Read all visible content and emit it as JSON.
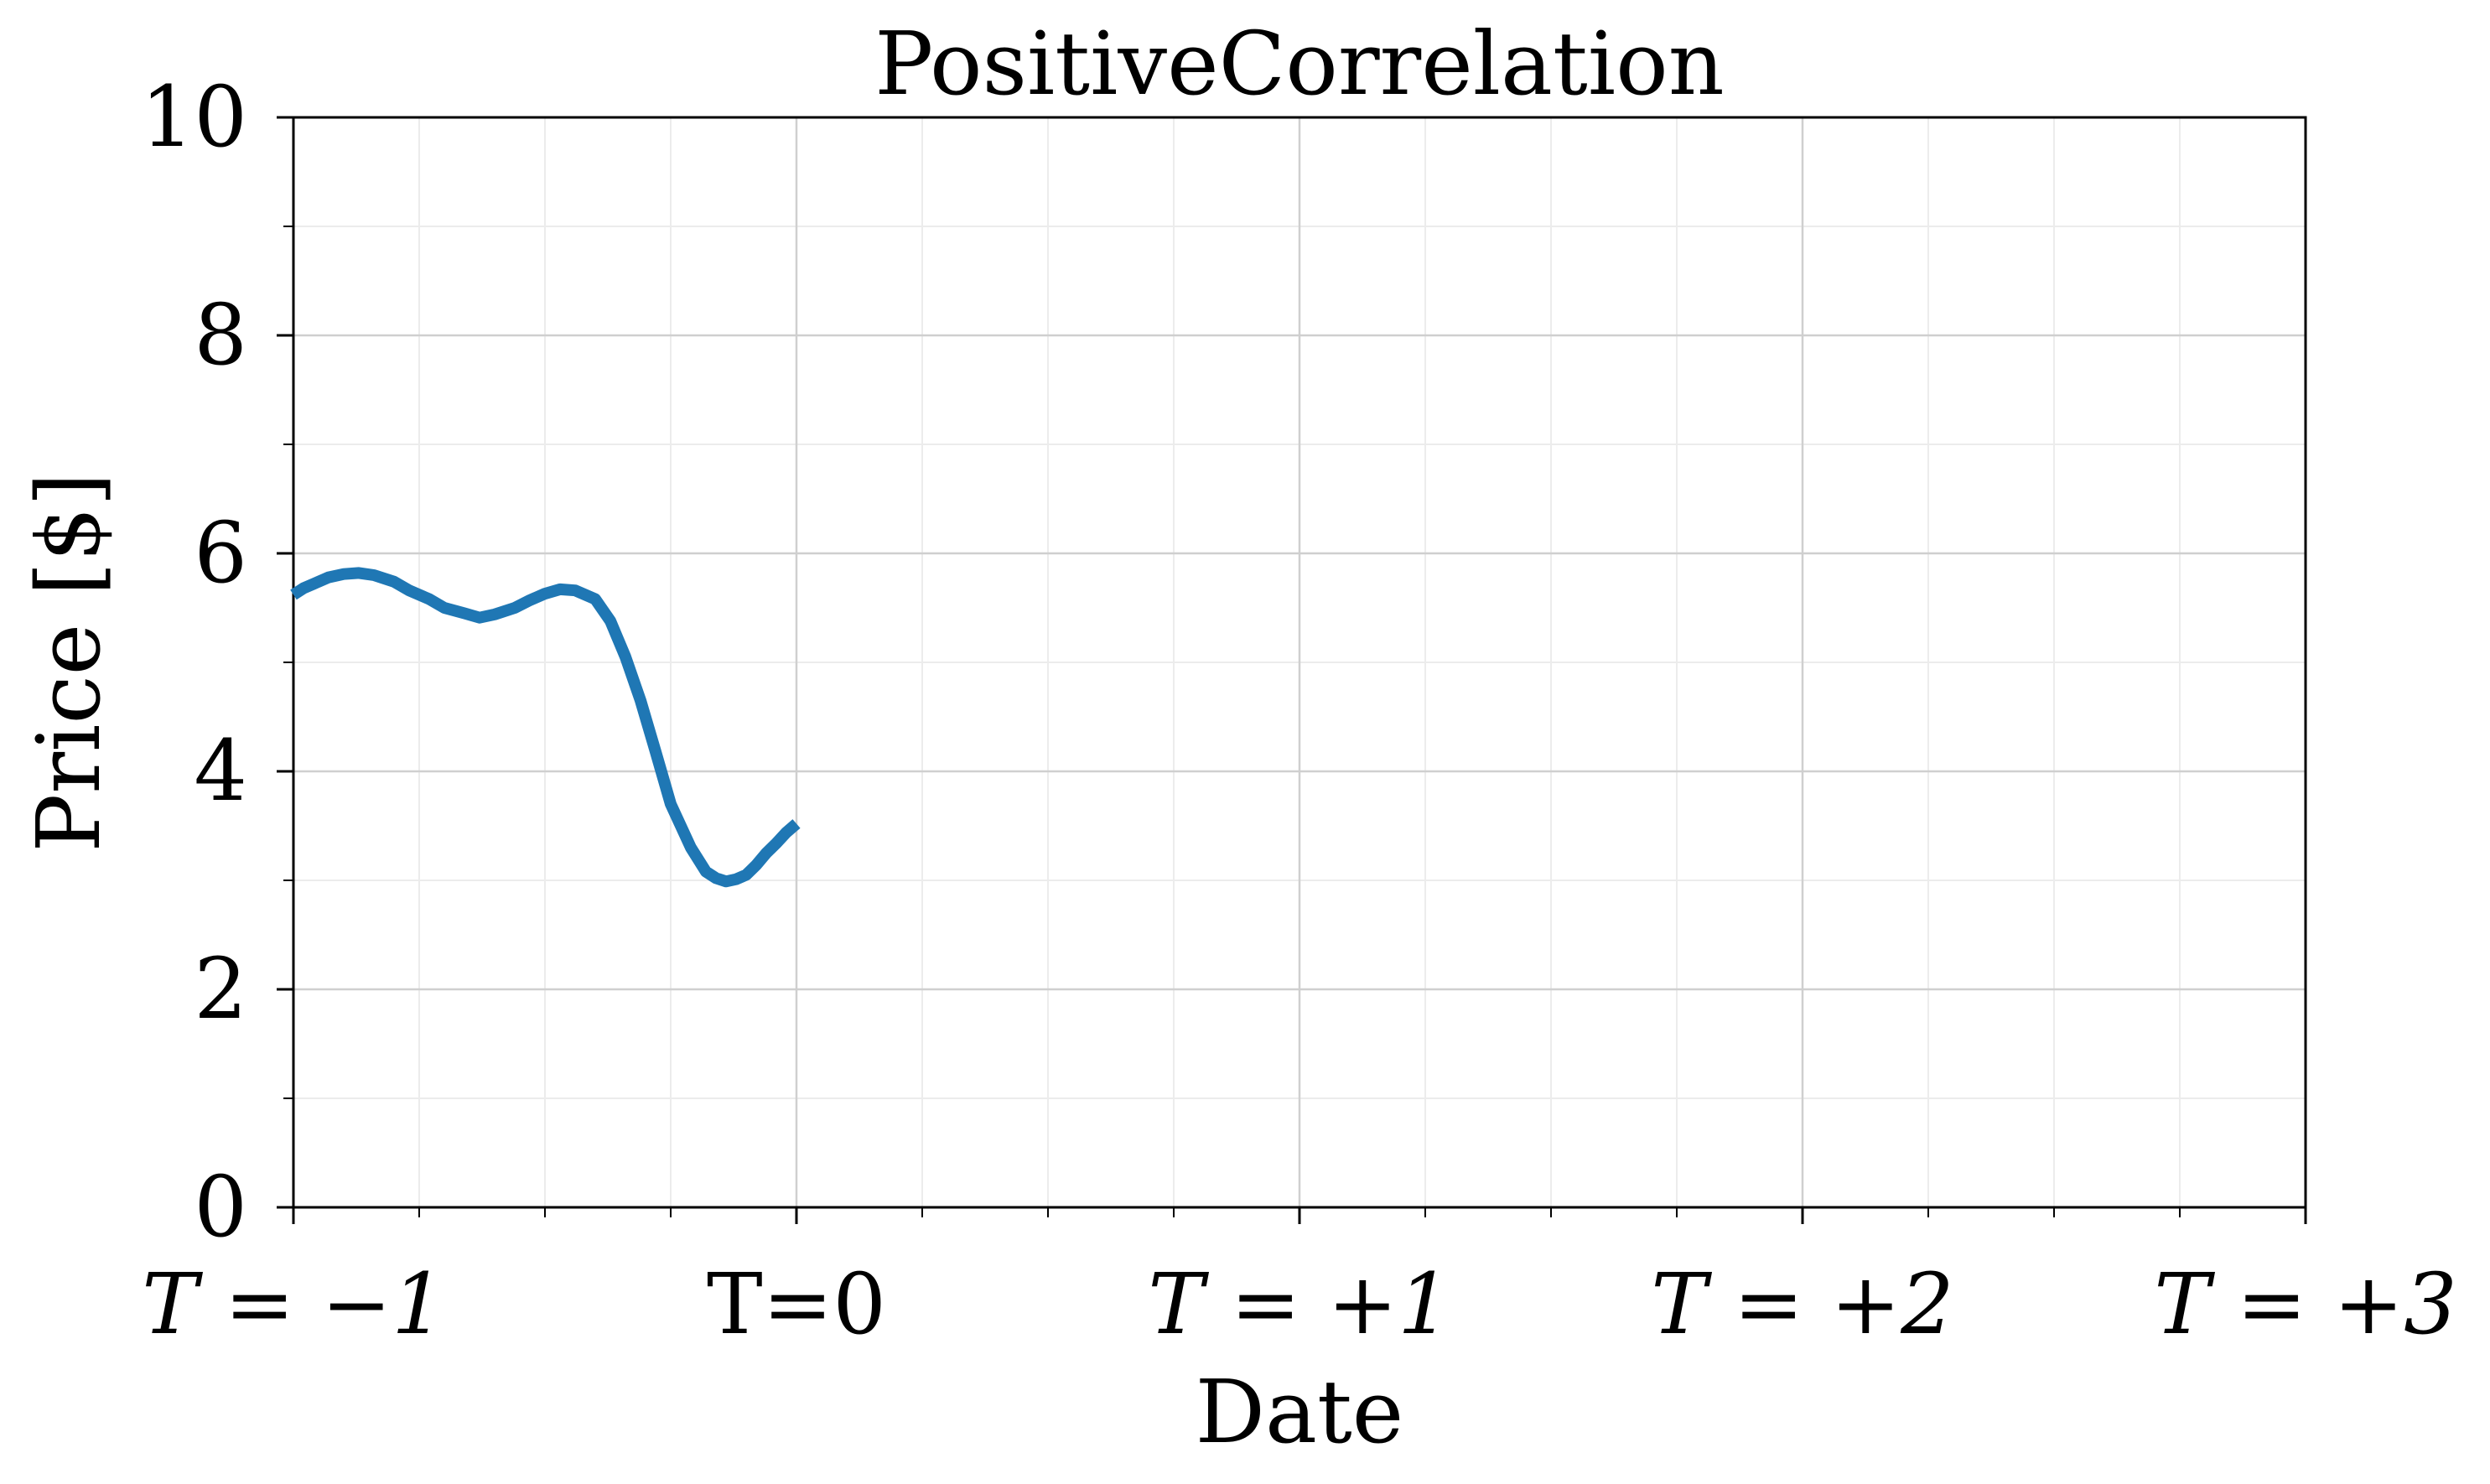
{
  "chart_data": {
    "type": "line",
    "title": "PositiveCorrelation",
    "xlabel": "Date",
    "ylabel": "Price [$]",
    "xlim": [
      -1,
      3
    ],
    "ylim": [
      0,
      10
    ],
    "x_ticks": [
      {
        "value": -1,
        "label": "T = −1"
      },
      {
        "value": 0,
        "label": "T=0"
      },
      {
        "value": 1,
        "label": "T = +1"
      },
      {
        "value": 2,
        "label": "T = +2"
      },
      {
        "value": 3,
        "label": "T = +3"
      }
    ],
    "y_ticks": [
      {
        "value": 0,
        "label": "0"
      },
      {
        "value": 2,
        "label": "2"
      },
      {
        "value": 4,
        "label": "4"
      },
      {
        "value": 6,
        "label": "6"
      },
      {
        "value": 8,
        "label": "8"
      },
      {
        "value": 10,
        "label": "10"
      }
    ],
    "grid": true,
    "minor_grid": true,
    "legend": "none",
    "series": [
      {
        "color": "#1f77b4",
        "x": [
          -1.0,
          -0.98,
          -0.96,
          -0.93,
          -0.9,
          -0.87,
          -0.84,
          -0.8,
          -0.77,
          -0.73,
          -0.7,
          -0.66,
          -0.63,
          -0.6,
          -0.56,
          -0.53,
          -0.5,
          -0.47,
          -0.44,
          -0.4,
          -0.37,
          -0.34,
          -0.31,
          -0.28,
          -0.25,
          -0.21,
          -0.18,
          -0.16,
          -0.14,
          -0.12,
          -0.1,
          -0.08,
          -0.06,
          -0.04,
          -0.02,
          0.0
        ],
        "values": [
          5.62,
          5.68,
          5.72,
          5.78,
          5.81,
          5.82,
          5.8,
          5.74,
          5.66,
          5.58,
          5.5,
          5.45,
          5.41,
          5.44,
          5.5,
          5.57,
          5.63,
          5.67,
          5.66,
          5.58,
          5.38,
          5.05,
          4.65,
          4.18,
          3.7,
          3.3,
          3.08,
          3.02,
          2.99,
          3.01,
          3.05,
          3.14,
          3.25,
          3.34,
          3.44,
          3.52
        ]
      }
    ]
  }
}
